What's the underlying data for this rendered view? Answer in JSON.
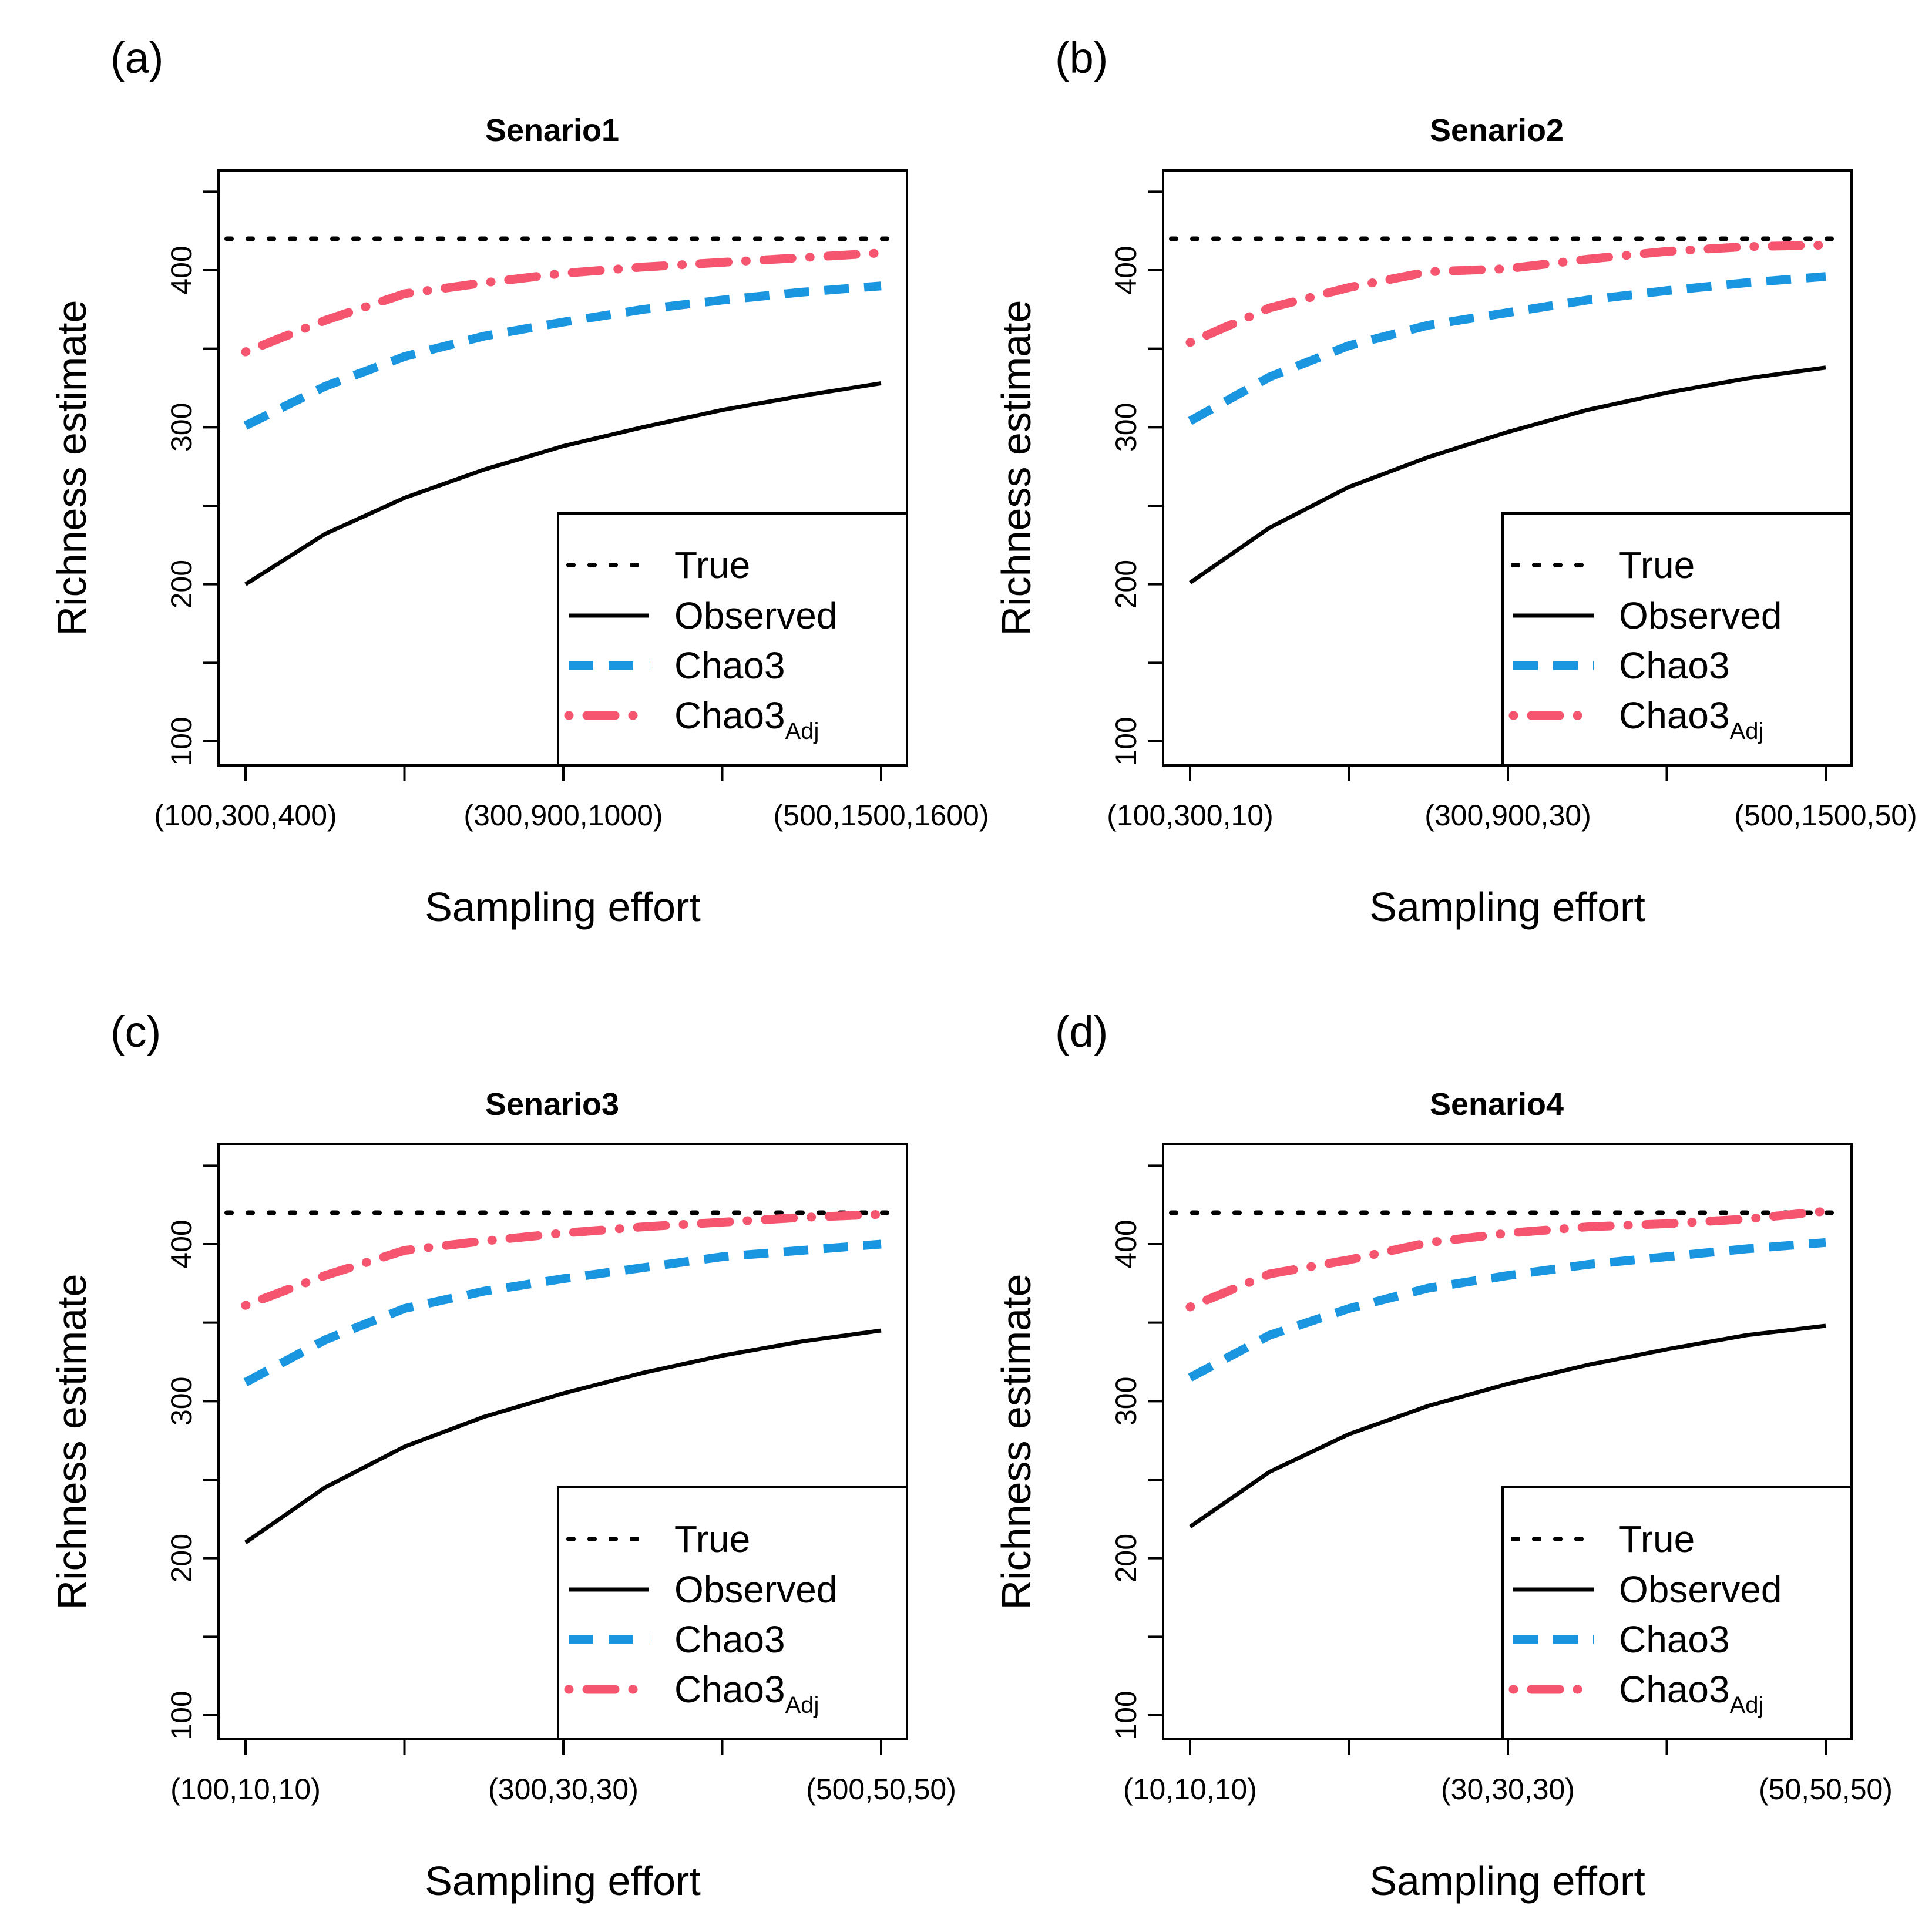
{
  "figure": {
    "ylabel": "Richness estimate",
    "xlabel": "Sampling effort"
  },
  "legend": [
    {
      "key": "true",
      "label": "True",
      "sub": ""
    },
    {
      "key": "observed",
      "label": "Observed",
      "sub": ""
    },
    {
      "key": "chao3",
      "label": "Chao3",
      "sub": ""
    },
    {
      "key": "chao3adj",
      "label": "Chao3",
      "sub": "Adj"
    }
  ],
  "colors": {
    "true": "#000000",
    "observed": "#000000",
    "chao3": "#1a96e0",
    "chao3adj": "#f5556f"
  },
  "chart_data": [
    {
      "type": "line",
      "panel_label": "(a)",
      "title": "Senario1",
      "xlabel": "Sampling effort",
      "ylabel": "Richness estimate",
      "ylim": [
        90,
        460
      ],
      "yticks": [
        100,
        200,
        300,
        400
      ],
      "x": [
        1,
        2,
        3,
        4,
        5,
        6,
        7,
        8,
        9
      ],
      "x_tick_positions": [
        1,
        3,
        5,
        7,
        9
      ],
      "x_tick_labels": [
        "(100,300,400)",
        "",
        "(300,900,1000)",
        "",
        "(500,1500,1600)"
      ],
      "legend_position": "bottom-right",
      "series": [
        {
          "name": "True",
          "key": "true",
          "values": [
            420,
            420,
            420,
            420,
            420,
            420,
            420,
            420,
            420
          ]
        },
        {
          "name": "Observed",
          "key": "observed",
          "values": [
            200,
            232,
            255,
            273,
            288,
            300,
            311,
            320,
            328
          ]
        },
        {
          "name": "Chao3",
          "key": "chao3",
          "values": [
            301,
            326,
            345,
            358,
            367,
            375,
            381,
            386,
            390
          ]
        },
        {
          "name": "Chao3Adj",
          "key": "chao3adj",
          "values": [
            348,
            368,
            385,
            392,
            398,
            402,
            405,
            408,
            411
          ]
        }
      ]
    },
    {
      "type": "line",
      "panel_label": "(b)",
      "title": "Senario2",
      "xlabel": "Sampling effort",
      "ylabel": "Richness estimate",
      "ylim": [
        90,
        460
      ],
      "yticks": [
        100,
        200,
        300,
        400
      ],
      "x": [
        1,
        2,
        3,
        4,
        5,
        6,
        7,
        8,
        9
      ],
      "x_tick_positions": [
        1,
        3,
        5,
        7,
        9
      ],
      "x_tick_labels": [
        "(100,300,10)",
        "",
        "(300,900,30)",
        "",
        "(500,1500,50)"
      ],
      "legend_position": "bottom-right",
      "series": [
        {
          "name": "True",
          "key": "true",
          "values": [
            420,
            420,
            420,
            420,
            420,
            420,
            420,
            420,
            420
          ]
        },
        {
          "name": "Observed",
          "key": "observed",
          "values": [
            201,
            236,
            262,
            281,
            297,
            311,
            322,
            331,
            338
          ]
        },
        {
          "name": "Chao3",
          "key": "chao3",
          "values": [
            304,
            332,
            352,
            365,
            373,
            381,
            387,
            392,
            396
          ]
        },
        {
          "name": "Chao3Adj",
          "key": "chao3adj",
          "values": [
            354,
            376,
            389,
            399,
            401,
            407,
            412,
            415,
            416
          ]
        }
      ]
    },
    {
      "type": "line",
      "panel_label": "(c)",
      "title": "Senario3",
      "xlabel": "Sampling effort",
      "ylabel": "Richness estimate",
      "ylim": [
        90,
        460
      ],
      "yticks": [
        100,
        200,
        300,
        400
      ],
      "x": [
        1,
        2,
        3,
        4,
        5,
        6,
        7,
        8,
        9
      ],
      "x_tick_positions": [
        1,
        3,
        5,
        7,
        9
      ],
      "x_tick_labels": [
        "(100,10,10)",
        "",
        "(300,30,30)",
        "",
        "(500,50,50)"
      ],
      "legend_position": "bottom-right",
      "series": [
        {
          "name": "True",
          "key": "true",
          "values": [
            420,
            420,
            420,
            420,
            420,
            420,
            420,
            420,
            420
          ]
        },
        {
          "name": "Observed",
          "key": "observed",
          "values": [
            210,
            245,
            271,
            290,
            305,
            318,
            329,
            338,
            345
          ]
        },
        {
          "name": "Chao3",
          "key": "chao3",
          "values": [
            312,
            339,
            359,
            370,
            378,
            385,
            392,
            396,
            400
          ]
        },
        {
          "name": "Chao3Adj",
          "key": "chao3adj",
          "values": [
            361,
            380,
            396,
            402,
            407,
            411,
            414,
            417,
            419
          ]
        }
      ]
    },
    {
      "type": "line",
      "panel_label": "(d)",
      "title": "Senario4",
      "xlabel": "Sampling effort",
      "ylabel": "Richness estimate",
      "ylim": [
        90,
        460
      ],
      "yticks": [
        100,
        200,
        300,
        400
      ],
      "x": [
        1,
        2,
        3,
        4,
        5,
        6,
        7,
        8,
        9
      ],
      "x_tick_positions": [
        1,
        3,
        5,
        7,
        9
      ],
      "x_tick_labels": [
        "(10,10,10)",
        "",
        "(30,30,30)",
        "",
        "(50,50,50)"
      ],
      "legend_position": "bottom-right",
      "series": [
        {
          "name": "True",
          "key": "true",
          "values": [
            420,
            420,
            420,
            420,
            420,
            420,
            420,
            420,
            420
          ]
        },
        {
          "name": "Observed",
          "key": "observed",
          "values": [
            220,
            255,
            279,
            297,
            311,
            323,
            333,
            342,
            348
          ]
        },
        {
          "name": "Chao3",
          "key": "chao3",
          "values": [
            315,
            342,
            359,
            372,
            380,
            387,
            392,
            397,
            401
          ]
        },
        {
          "name": "Chao3Adj",
          "key": "chao3adj",
          "values": [
            360,
            381,
            390,
            401,
            407,
            411,
            413,
            416,
            421
          ]
        }
      ]
    }
  ]
}
